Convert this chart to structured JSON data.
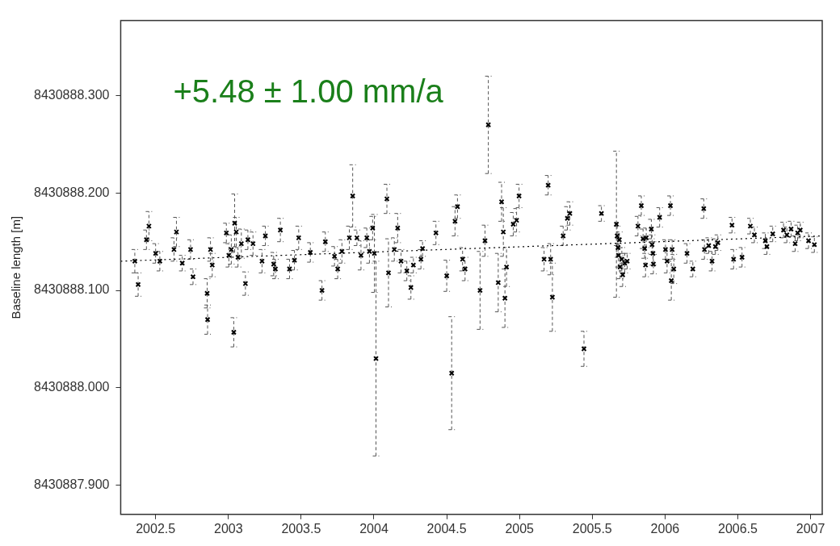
{
  "chart_data": {
    "type": "scatter",
    "ylabel": "Baseline length [m]",
    "annotations": [
      "+5.48 ± 1.00 mm/a"
    ],
    "grid": false,
    "legend": false,
    "xlim": [
      2002.26,
      2007.08
    ],
    "xticks": [
      2002.5,
      2003,
      2003.5,
      2004,
      2004.5,
      2005,
      2005.5,
      2006,
      2006.5,
      2007
    ],
    "ylim": [
      8430887.87,
      8430888.377
    ],
    "yticks": [
      {
        "value": 8430887.9,
        "label": "8430887.900"
      },
      {
        "value": 8430888.0,
        "label": "8430888.000"
      },
      {
        "value": 8430888.1,
        "label": "8430888.100"
      },
      {
        "value": 8430888.2,
        "label": "8430888.200"
      },
      {
        "value": 8430888.3,
        "label": "8430888.300"
      }
    ],
    "series": [
      {
        "type": "scatter",
        "color": "#000000",
        "marker": "cross",
        "x": [
          2002.357,
          2002.38,
          2002.437,
          2002.454,
          2002.5,
          2002.529,
          2002.626,
          2002.643,
          2002.683,
          2002.74,
          2002.757,
          2002.854,
          2002.857,
          2002.877,
          2002.889,
          2002.986,
          2003.003,
          2003.02,
          2003.037,
          2003.043,
          2003.054,
          2003.066,
          2003.089,
          2003.117,
          2003.134,
          2003.169,
          2003.231,
          2003.254,
          2003.311,
          2003.323,
          2003.357,
          2003.42,
          2003.454,
          2003.483,
          2003.563,
          2003.643,
          2003.666,
          2003.729,
          2003.751,
          2003.78,
          2003.831,
          2003.854,
          2003.883,
          2003.911,
          2003.951,
          2003.969,
          2003.991,
          2004.003,
          2004.014,
          2004.089,
          2004.1,
          2004.14,
          2004.163,
          2004.186,
          2004.226,
          2004.254,
          2004.271,
          2004.323,
          2004.334,
          2004.426,
          2004.5,
          2004.534,
          2004.557,
          2004.574,
          2004.609,
          2004.626,
          2004.729,
          2004.763,
          2004.786,
          2004.854,
          2004.877,
          2004.889,
          2004.9,
          2004.911,
          2004.957,
          2004.98,
          2004.997,
          2005.169,
          2005.197,
          2005.214,
          2005.226,
          2005.3,
          2005.329,
          2005.346,
          2005.443,
          2005.563,
          2005.666,
          2005.671,
          2005.677,
          2005.68,
          2005.686,
          2005.691,
          2005.703,
          2005.709,
          2005.723,
          2005.74,
          2005.814,
          2005.837,
          2005.849,
          2005.86,
          2005.866,
          2005.871,
          2005.906,
          2005.911,
          2005.917,
          2005.92,
          2005.963,
          2006.003,
          2006.014,
          2006.037,
          2006.043,
          2006.049,
          2006.06,
          2006.151,
          2006.191,
          2006.266,
          2006.271,
          2006.3,
          2006.323,
          2006.346,
          2006.363,
          2006.46,
          2006.471,
          2006.529,
          2006.586,
          2006.614,
          2006.689,
          2006.7,
          2006.74,
          2006.814,
          2006.837,
          2006.866,
          2006.894,
          2006.911,
          2006.929,
          2006.986,
          2007.026
        ],
        "values": [
          8430888.13,
          8430888.106,
          8430888.152,
          8430888.166,
          8430888.138,
          8430888.13,
          8430888.142,
          8430888.16,
          8430888.128,
          8430888.142,
          8430888.114,
          8430888.097,
          8430888.07,
          8430888.142,
          8430888.126,
          8430888.159,
          8430888.136,
          8430888.142,
          8430888.057,
          8430888.169,
          8430888.16,
          8430888.134,
          8430888.148,
          8430888.107,
          8430888.152,
          8430888.148,
          8430888.13,
          8430888.156,
          8430888.127,
          8430888.122,
          8430888.162,
          8430888.122,
          8430888.131,
          8430888.154,
          8430888.139,
          8430888.1,
          8430888.15,
          8430888.135,
          8430888.122,
          8430888.14,
          8430888.154,
          8430888.197,
          8430888.154,
          8430888.136,
          8430888.154,
          8430888.14,
          8430888.164,
          8430888.138,
          8430888.03,
          8430888.194,
          8430888.118,
          8430888.142,
          8430888.164,
          8430888.13,
          8430888.12,
          8430888.103,
          8430888.126,
          8430888.132,
          8430888.143,
          8430888.159,
          8430888.115,
          8430888.015,
          8430888.171,
          8430888.186,
          8430888.132,
          8430888.122,
          8430888.1,
          8430888.151,
          8430888.27,
          8430888.108,
          8430888.191,
          8430888.16,
          8430888.092,
          8430888.124,
          8430888.168,
          8430888.172,
          8430888.197,
          8430888.132,
          8430888.208,
          8430888.132,
          8430888.093,
          8430888.156,
          8430888.174,
          8430888.179,
          8430888.04,
          8430888.179,
          8430888.168,
          8430888.156,
          8430888.144,
          8430888.136,
          8430888.152,
          8430888.124,
          8430888.132,
          8430888.116,
          8430888.128,
          8430888.13,
          8430888.166,
          8430888.187,
          8430888.153,
          8430888.143,
          8430888.126,
          8430888.154,
          8430888.163,
          8430888.147,
          8430888.138,
          8430888.127,
          8430888.175,
          8430888.142,
          8430888.13,
          8430888.187,
          8430888.11,
          8430888.142,
          8430888.122,
          8430888.138,
          8430888.122,
          8430888.184,
          8430888.142,
          8430888.146,
          8430888.13,
          8430888.145,
          8430888.149,
          8430888.167,
          8430888.132,
          8430888.134,
          8430888.166,
          8430888.157,
          8430888.151,
          8430888.145,
          8430888.158,
          8430888.162,
          8430888.157,
          8430888.163,
          8430888.148,
          8430888.159,
          8430888.162,
          8430888.151,
          8430888.147
        ],
        "errors": [
          0.012,
          0.012,
          0.01,
          0.015,
          0.01,
          0.01,
          0.012,
          0.015,
          0.008,
          0.01,
          0.008,
          0.015,
          0.015,
          0.012,
          0.012,
          0.01,
          0.012,
          0.015,
          0.015,
          0.03,
          0.015,
          0.01,
          0.015,
          0.012,
          0.01,
          0.012,
          0.012,
          0.01,
          0.012,
          0.01,
          0.012,
          0.01,
          0.01,
          0.012,
          0.01,
          0.01,
          0.01,
          0.01,
          0.01,
          0.012,
          0.012,
          0.032,
          0.008,
          0.015,
          0.01,
          0.012,
          0.012,
          0.04,
          0.1,
          0.015,
          0.035,
          0.012,
          0.015,
          0.012,
          0.01,
          0.012,
          0.008,
          0.01,
          0.008,
          0.012,
          0.016,
          0.058,
          0.015,
          0.012,
          0.012,
          0.012,
          0.04,
          0.016,
          0.05,
          0.03,
          0.02,
          0.025,
          0.03,
          0.02,
          0.012,
          0.012,
          0.012,
          0.012,
          0.01,
          0.016,
          0.035,
          0.01,
          0.012,
          0.012,
          0.018,
          0.008,
          0.075,
          0.01,
          0.01,
          0.012,
          0.008,
          0.012,
          0.012,
          0.012,
          0.01,
          0.008,
          0.01,
          0.01,
          0.01,
          0.01,
          0.012,
          0.01,
          0.01,
          0.01,
          0.012,
          0.01,
          0.01,
          0.01,
          0.012,
          0.01,
          0.02,
          0.01,
          0.015,
          0.01,
          0.008,
          0.01,
          0.01,
          0.008,
          0.01,
          0.008,
          0.008,
          0.008,
          0.01,
          0.01,
          0.008,
          0.008,
          0.008,
          0.008,
          0.008,
          0.008,
          0.008,
          0.008,
          0.008,
          0.008,
          0.008,
          0.008,
          0.008
        ]
      },
      {
        "type": "line",
        "color": "#000000",
        "marker": "none",
        "line_style": "dotted",
        "x": [
          2002.26,
          2007.08
        ],
        "values": [
          8430888.13,
          8430888.156
        ]
      }
    ]
  }
}
